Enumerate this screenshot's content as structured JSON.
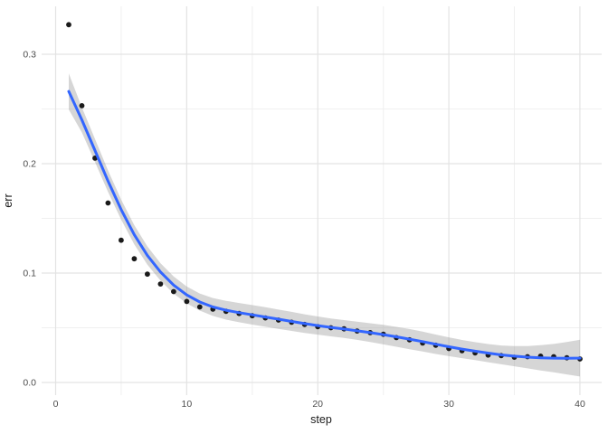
{
  "chart_data": {
    "type": "scatter",
    "title": "",
    "xlabel": "step",
    "ylabel": "err",
    "grid": "on",
    "legend": "none",
    "x_axis": {
      "ticks": [
        0,
        10,
        20,
        30,
        40
      ],
      "tick_labels": [
        "0",
        "10",
        "20",
        "30",
        "40"
      ],
      "minor_ticks": [
        5,
        15,
        25,
        35
      ],
      "range": [
        -1.07,
        41.66
      ]
    },
    "y_axis": {
      "ticks": [
        0.0,
        0.1,
        0.2,
        0.3
      ],
      "tick_labels": [
        "0.0",
        "0.1",
        "0.2",
        "0.3"
      ],
      "minor_ticks": [
        0.05,
        0.15,
        0.25
      ],
      "range": [
        -0.0116,
        0.3438
      ]
    },
    "x": [
      1,
      2,
      3,
      4,
      5,
      6,
      7,
      8,
      9,
      10,
      11,
      12,
      13,
      14,
      15,
      16,
      17,
      18,
      19,
      20,
      21,
      22,
      23,
      24,
      25,
      26,
      27,
      28,
      29,
      30,
      31,
      32,
      33,
      34,
      35,
      36,
      37,
      38,
      39,
      40
    ],
    "series": [
      {
        "name": "err-points",
        "type": "points",
        "y": [
          0.327,
          0.253,
          0.205,
          0.164,
          0.13,
          0.113,
          0.099,
          0.09,
          0.083,
          0.074,
          0.069,
          0.067,
          0.065,
          0.063,
          0.061,
          0.059,
          0.057,
          0.055,
          0.053,
          0.051,
          0.05,
          0.049,
          0.047,
          0.0455,
          0.044,
          0.041,
          0.039,
          0.036,
          0.034,
          0.031,
          0.029,
          0.027,
          0.025,
          0.0245,
          0.023,
          0.0235,
          0.024,
          0.0235,
          0.0225,
          0.0215
        ]
      },
      {
        "name": "loess-smooth",
        "type": "line",
        "y": [
          0.266,
          0.24,
          0.212,
          0.184,
          0.158,
          0.135,
          0.116,
          0.101,
          0.089,
          0.08,
          0.0735,
          0.069,
          0.066,
          0.0638,
          0.0618,
          0.0598,
          0.0578,
          0.0558,
          0.0538,
          0.052,
          0.0503,
          0.0488,
          0.0472,
          0.0455,
          0.0437,
          0.0417,
          0.0396,
          0.0373,
          0.0349,
          0.0326,
          0.0305,
          0.0286,
          0.0268,
          0.0252,
          0.024,
          0.0231,
          0.0225,
          0.0222,
          0.0221,
          0.0222
        ]
      },
      {
        "name": "confidence-band",
        "type": "ribbon",
        "upper": [
          0.2825,
          0.2515,
          0.2225,
          0.1938,
          0.1672,
          0.1438,
          0.1244,
          0.109,
          0.0968,
          0.0877,
          0.0813,
          0.0772,
          0.0746,
          0.0726,
          0.0707,
          0.0687,
          0.0666,
          0.0645,
          0.0623,
          0.0603,
          0.0585,
          0.057,
          0.0555,
          0.0541,
          0.0526,
          0.0508,
          0.0488,
          0.0464,
          0.0438,
          0.0412,
          0.0388,
          0.0368,
          0.0351,
          0.0338,
          0.0332,
          0.0333,
          0.034,
          0.0352,
          0.0369,
          0.039
        ],
        "lower": [
          0.2495,
          0.2285,
          0.2015,
          0.1742,
          0.1488,
          0.1262,
          0.1076,
          0.093,
          0.0812,
          0.0723,
          0.0657,
          0.0608,
          0.0574,
          0.055,
          0.0529,
          0.0509,
          0.049,
          0.0471,
          0.0453,
          0.0437,
          0.0421,
          0.0406,
          0.0389,
          0.0369,
          0.0348,
          0.0326,
          0.0304,
          0.0282,
          0.026,
          0.024,
          0.0222,
          0.0204,
          0.0185,
          0.0166,
          0.0148,
          0.0129,
          0.011,
          0.0092,
          0.0073,
          0.0054
        ]
      }
    ],
    "colors": {
      "background": "#ffffff",
      "grid_major": "#e3e3e3",
      "grid_minor": "#f0f0f0",
      "point": "#1a1a1a",
      "line": "#3366ff",
      "ribbon": "#999999",
      "ribbon_opacity": 0.4,
      "tick_label": "#4d4d4d",
      "axis_title": "#1a1a1a"
    }
  }
}
